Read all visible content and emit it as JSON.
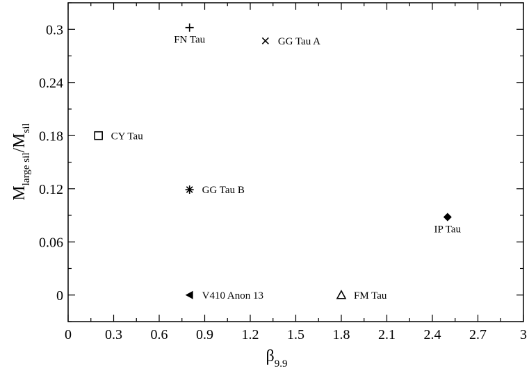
{
  "chart_data": {
    "type": "scatter",
    "title": "",
    "xlabel": {
      "main": "β",
      "sub": "9.9"
    },
    "ylabel": {
      "main1": "M",
      "sub1": "large sil",
      "main2": "/M",
      "sub2": "sil"
    },
    "xlim": [
      0,
      3
    ],
    "ylim": [
      -0.03,
      0.33
    ],
    "xticks": [
      0,
      0.3,
      0.6,
      0.9,
      1.2,
      1.5,
      1.8,
      2.1,
      2.4,
      2.7,
      3
    ],
    "xtick_labels": [
      "0",
      "0.3",
      "0.6",
      "0.9",
      "1.2",
      "1.5",
      "1.8",
      "2.1",
      "2.4",
      "2.7",
      "3"
    ],
    "yticks": [
      0,
      0.06,
      0.12,
      0.18,
      0.24,
      0.3
    ],
    "ytick_labels": [
      "0",
      "0.06",
      "0.12",
      "0.18",
      "0.24",
      "0.3"
    ],
    "grid": false,
    "points": [
      {
        "label": "FN Tau",
        "x": 0.8,
        "y": 0.302,
        "marker": "plus",
        "label_position": "below"
      },
      {
        "label": "GG Tau A",
        "x": 1.3,
        "y": 0.287,
        "marker": "cross",
        "label_position": "right"
      },
      {
        "label": "CY Tau",
        "x": 0.2,
        "y": 0.18,
        "marker": "square-open",
        "label_position": "right"
      },
      {
        "label": "GG Tau B",
        "x": 0.8,
        "y": 0.119,
        "marker": "asterisk",
        "label_position": "right"
      },
      {
        "label": "IP Tau",
        "x": 2.5,
        "y": 0.088,
        "marker": "diamond-filled",
        "label_position": "below"
      },
      {
        "label": "V410 Anon 13",
        "x": 0.8,
        "y": 0.0,
        "marker": "triangle-left-filled",
        "label_position": "right"
      },
      {
        "label": "FM Tau",
        "x": 1.8,
        "y": 0.0,
        "marker": "triangle-up-open",
        "label_position": "right"
      }
    ]
  }
}
